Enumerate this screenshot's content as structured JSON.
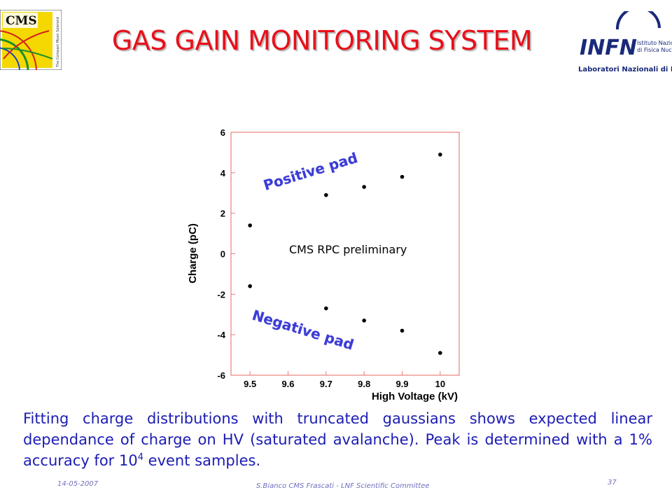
{
  "slide": {
    "title": "GAS GAIN MONITORING SYSTEM",
    "body_text": "Fitting charge distributions with truncated gaussians shows expected linear dependance of charge on HV (saturated avalanche). Peak is determined with a 1% accuracy for 10",
    "body_sup": "4",
    "body_tail": " event samples.",
    "footer_date": "14-05-2007",
    "footer_credit": "S.Bianco CMS Frascati - LNF Scientific Committee",
    "page_number": "37"
  },
  "logos": {
    "cms": {
      "text": "CMS",
      "tagline": "The Compact Muon Solenoid"
    },
    "infn": {
      "text": "INFN",
      "line1": "Istituto Nazionale",
      "line2": "di Fisica Nucleare",
      "line3": "Laboratori Nazionali di Frascati"
    }
  },
  "chart_data": {
    "type": "scatter",
    "xlabel": "High Voltage  (kV)",
    "ylabel": "Charge  (pC)",
    "xlim": [
      9.45,
      10.05
    ],
    "ylim": [
      -6,
      6
    ],
    "x_ticks": [
      "9.5",
      "9.6",
      "9.7",
      "9.8",
      "9.9",
      "10"
    ],
    "y_ticks": [
      "6",
      "4",
      "2",
      "0",
      "-2",
      "-4",
      "-6"
    ],
    "series": [
      {
        "name": "Positive pad",
        "points": [
          [
            9.5,
            1.4
          ],
          [
            9.7,
            2.9
          ],
          [
            9.8,
            3.3
          ],
          [
            9.9,
            3.8
          ],
          [
            10.0,
            4.9
          ]
        ]
      },
      {
        "name": "Negative pad",
        "points": [
          [
            9.5,
            -1.6
          ],
          [
            9.7,
            -2.7
          ],
          [
            9.8,
            -3.3
          ],
          [
            9.9,
            -3.8
          ],
          [
            10.0,
            -4.9
          ]
        ]
      }
    ],
    "annotation": "CMS RPC preliminary",
    "colors": {
      "frame": "#e8807a",
      "label": "#3c3cd8",
      "points": "#000000"
    },
    "grid": false,
    "legend": "none"
  }
}
